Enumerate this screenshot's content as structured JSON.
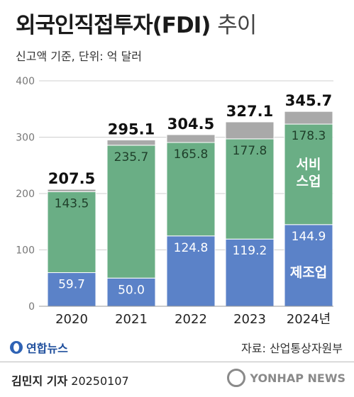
{
  "header": {
    "title": "외국인직접투자(FDI)",
    "title_suffix": "추이",
    "subtitle": "신고액 기준, 단위: 억 달러"
  },
  "chart_data": {
    "type": "bar",
    "stacked": true,
    "categories": [
      "2020",
      "2021",
      "2022",
      "2023",
      "2024년"
    ],
    "ylim": [
      0,
      400
    ],
    "yticks": [
      0,
      100,
      200,
      300,
      400
    ],
    "totals": [
      207.5,
      295.1,
      304.5,
      327.1,
      345.7
    ],
    "series": [
      {
        "name": "제조업",
        "color": "#5b82c8",
        "values": [
          59.7,
          50.0,
          124.8,
          119.2,
          144.9
        ]
      },
      {
        "name": "서비스업",
        "color": "#6aae85",
        "values": [
          143.5,
          235.7,
          165.8,
          177.8,
          178.3
        ]
      },
      {
        "color": "#a9a9a9",
        "values": [
          4.3,
          9.4,
          13.9,
          30.1,
          22.5
        ]
      }
    ],
    "value_labels": [
      [
        "59.7",
        "50.0",
        "124.8",
        "119.2",
        "144.9"
      ],
      [
        "143.5",
        "235.7",
        "165.8",
        "177.8",
        "178.3"
      ]
    ],
    "total_labels": [
      "207.5",
      "295.1",
      "304.5",
      "327.1",
      "345.7"
    ],
    "series_labels": {
      "services_line1": "서비",
      "services_line2": "스업",
      "manufacturing": "제조업"
    },
    "colors": {
      "manufacturing": "#5b82c8",
      "services": "#6aae85",
      "other": "#a9a9a9",
      "grid": "#cfcfcf"
    }
  },
  "footer": {
    "logo": "연합뉴스",
    "source": "자료: 산업통상자원부",
    "author": "김민지 기자",
    "date": "20250107",
    "watermark": "YONHAP NEWS"
  }
}
